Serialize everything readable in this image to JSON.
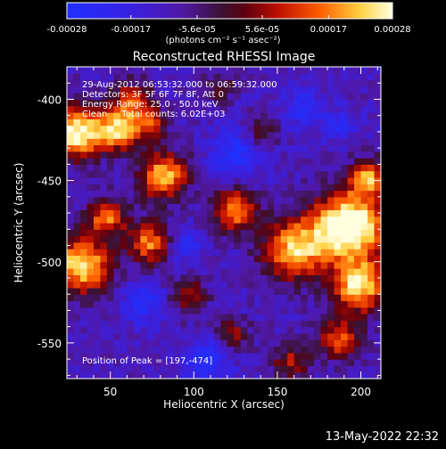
{
  "colorbar": {
    "tick_labels": [
      "-0.00028",
      "-0.00017",
      "-5.6e-05",
      "5.6e-05",
      "0.00017",
      "0.00028"
    ],
    "tick_values": [
      -0.00028,
      -0.00017,
      -5.6e-05,
      5.6e-05,
      0.00017,
      0.00028
    ],
    "range": [
      -0.00028,
      0.00028
    ],
    "units_label": "(photons cm⁻² s⁻¹ asec⁻²)",
    "stops": [
      {
        "v": 0.0,
        "color": "#2030ff"
      },
      {
        "v": 0.2,
        "color": "#3a20e0"
      },
      {
        "v": 0.35,
        "color": "#5018a8"
      },
      {
        "v": 0.48,
        "color": "#3b1230"
      },
      {
        "v": 0.55,
        "color": "#600010"
      },
      {
        "v": 0.65,
        "color": "#c01000"
      },
      {
        "v": 0.78,
        "color": "#ff6000"
      },
      {
        "v": 0.9,
        "color": "#ffd040"
      },
      {
        "v": 1.0,
        "color": "#ffffe0"
      }
    ]
  },
  "annotations": {
    "line1": "29-Aug-2012 06:53:32.000 to 06:59:32.000",
    "line2": "Detectors: 3F 5F 6F 7F 8F, Att 0",
    "line3": "Energy Range: 25.0 - 50.0 keV",
    "line4": "Clean     Total counts: 6.02E+03",
    "peak": "Position of Peak = [197,-474]"
  },
  "footer": {
    "timestamp": "13-May-2022 22:32"
  },
  "chart_data": {
    "type": "heatmap",
    "title": "Reconstructed RHESSI Image",
    "xlabel": "Heliocentric X (arcsec)",
    "ylabel": "Heliocentric Y (arcsec)",
    "xlim": [
      24,
      212
    ],
    "ylim": [
      -572,
      -380
    ],
    "xticks": [
      50,
      100,
      150,
      200
    ],
    "yticks": [
      -400,
      -450,
      -500,
      -550
    ],
    "cell_size_arcsec": 4,
    "peak_position": [
      197,
      -474
    ],
    "baseline": 0.3,
    "blobs": [
      {
        "x": 30,
        "y": -420,
        "amp": 0.72,
        "r": 11
      },
      {
        "x": 55,
        "y": -418,
        "amp": 0.6,
        "r": 9
      },
      {
        "x": 63,
        "y": -400,
        "amp": 0.42,
        "r": 8
      },
      {
        "x": 75,
        "y": -415,
        "amp": 0.35,
        "r": 7
      },
      {
        "x": 82,
        "y": -447,
        "amp": 0.62,
        "r": 10
      },
      {
        "x": 48,
        "y": -472,
        "amp": 0.5,
        "r": 8
      },
      {
        "x": 33,
        "y": -502,
        "amp": 0.68,
        "r": 12
      },
      {
        "x": 73,
        "y": -488,
        "amp": 0.5,
        "r": 9
      },
      {
        "x": 125,
        "y": -468,
        "amp": 0.55,
        "r": 9
      },
      {
        "x": 160,
        "y": -492,
        "amp": 0.6,
        "r": 13
      },
      {
        "x": 193,
        "y": -478,
        "amp": 0.85,
        "r": 15
      },
      {
        "x": 199,
        "y": -515,
        "amp": 0.65,
        "r": 11
      },
      {
        "x": 205,
        "y": -448,
        "amp": 0.5,
        "r": 8
      },
      {
        "x": 187,
        "y": -547,
        "amp": 0.45,
        "r": 9
      },
      {
        "x": 158,
        "y": -562,
        "amp": 0.32,
        "r": 8
      },
      {
        "x": 97,
        "y": -521,
        "amp": 0.32,
        "r": 8
      },
      {
        "x": 123,
        "y": -545,
        "amp": 0.3,
        "r": 7
      },
      {
        "x": 140,
        "y": -420,
        "amp": 0.25,
        "r": 7
      },
      {
        "x": 115,
        "y": -392,
        "amp": 0.22,
        "r": 7
      }
    ],
    "dips": [
      {
        "x": 125,
        "y": -432,
        "amp": 0.3,
        "r": 10
      },
      {
        "x": 108,
        "y": -560,
        "amp": 0.3,
        "r": 9
      },
      {
        "x": 70,
        "y": -525,
        "amp": 0.25,
        "r": 9
      },
      {
        "x": 165,
        "y": -405,
        "amp": 0.22,
        "r": 8
      },
      {
        "x": 186,
        "y": -415,
        "amp": 0.2,
        "r": 7
      },
      {
        "x": 95,
        "y": -490,
        "amp": 0.2,
        "r": 7
      }
    ]
  }
}
